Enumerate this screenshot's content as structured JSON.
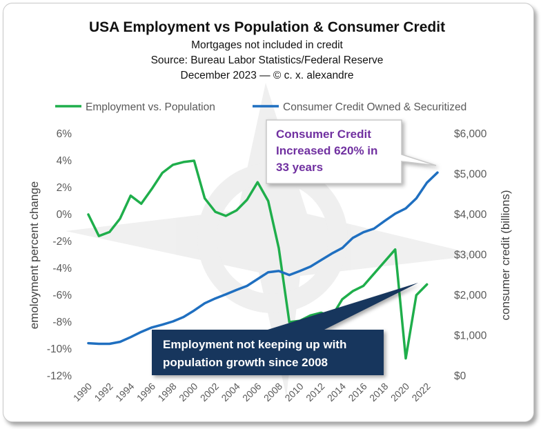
{
  "chart_data": {
    "type": "line",
    "title": "USA Employment vs Population & Consumer Credit",
    "subtitles": [
      "Mortgages not included in credit",
      "Source: Bureau Labor Statistics/Federal Reserve",
      "December 2023 — © c. x. alexandre"
    ],
    "ylabel": "emoloyment percent change",
    "y2label": "consumer credit (billions)",
    "ylim": [
      -12,
      6
    ],
    "y2lim": [
      0,
      6000
    ],
    "xlim": [
      1990,
      2023
    ],
    "y_ticks": [
      "6%",
      "4%",
      "2%",
      "0%",
      "-2%",
      "-4%",
      "-6%",
      "-8%",
      "-10%",
      "-12%"
    ],
    "y2_ticks": [
      "$6,000",
      "$5,000",
      "$4,000",
      "$3,000",
      "$2,000",
      "$1,000",
      "$0"
    ],
    "x_ticks": [
      "1990",
      "1992",
      "1994",
      "1996",
      "1998",
      "2000",
      "2002",
      "2004",
      "2006",
      "2008",
      "2010",
      "2012",
      "2014",
      "2016",
      "2018",
      "2020",
      "2022"
    ],
    "legend_position": "top",
    "colors": {
      "employment": "#1fae4b",
      "credit": "#1f6fc0"
    },
    "series": [
      {
        "name": "Employment vs. Population",
        "axis": "left",
        "x": [
          1990,
          1991,
          1992,
          1993,
          1994,
          1995,
          1996,
          1997,
          1998,
          1999,
          2000,
          2001,
          2002,
          2003,
          2004,
          2005,
          2006,
          2007,
          2008,
          2009,
          2010,
          2011,
          2012,
          2013,
          2014,
          2015,
          2016,
          2017,
          2018,
          2019,
          2020,
          2021,
          2022
        ],
        "values": [
          0.0,
          -1.6,
          -1.3,
          -0.3,
          1.4,
          0.8,
          1.9,
          3.1,
          3.7,
          3.9,
          4.0,
          1.2,
          0.2,
          -0.1,
          0.3,
          1.1,
          2.4,
          1.0,
          -2.5,
          -8.0,
          -7.9,
          -7.5,
          -7.3,
          -7.6,
          -6.3,
          -5.7,
          -5.3,
          -4.4,
          -3.5,
          -2.6,
          -10.7,
          -6.0,
          -5.2
        ]
      },
      {
        "name": "Consumer Credit Owned & Securitized",
        "axis": "right",
        "x": [
          1990,
          1991,
          1992,
          1993,
          1994,
          1995,
          1996,
          1997,
          1998,
          1999,
          2000,
          2001,
          2002,
          2003,
          2004,
          2005,
          2006,
          2007,
          2008,
          2009,
          2010,
          2011,
          2012,
          2013,
          2014,
          2015,
          2016,
          2017,
          2018,
          2019,
          2020,
          2021,
          2022,
          2023
        ],
        "values": [
          810,
          795,
          795,
          845,
          960,
          1090,
          1200,
          1270,
          1350,
          1460,
          1620,
          1800,
          1920,
          2020,
          2130,
          2230,
          2400,
          2570,
          2600,
          2500,
          2600,
          2710,
          2870,
          3030,
          3170,
          3420,
          3560,
          3650,
          3840,
          4020,
          4150,
          4400,
          4790,
          5040
        ]
      }
    ],
    "annotations": [
      {
        "lines": [
          "Consumer Credit",
          "Increased 620% in",
          "33 years"
        ]
      },
      {
        "lines": [
          "Employment not keeping up with",
          "population  growth since 2008"
        ]
      }
    ]
  }
}
